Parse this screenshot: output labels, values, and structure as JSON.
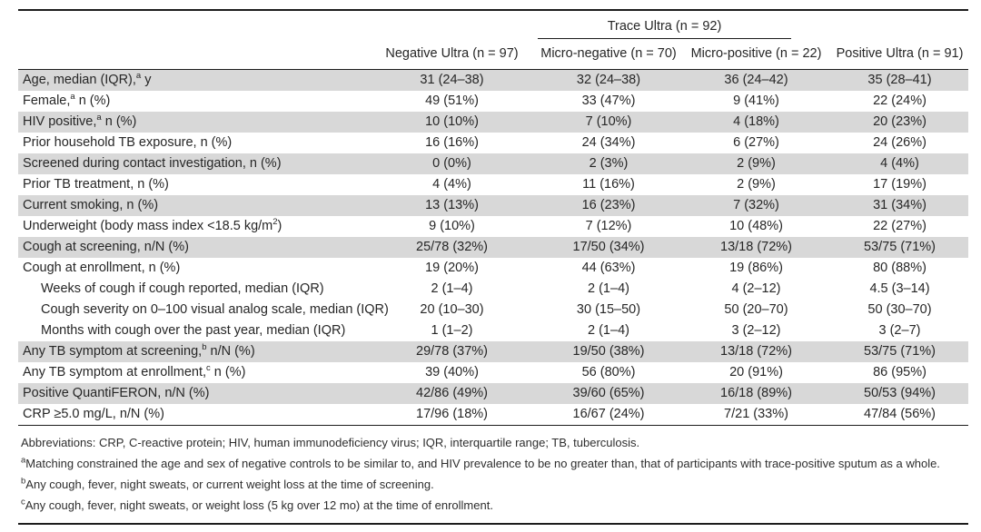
{
  "table": {
    "group_header": "Trace Ultra (n = 92)",
    "columns": [
      "Negative Ultra (n = 97)",
      "Micro-negative (n = 70)",
      "Micro-positive (n = 22)",
      "Positive Ultra (n = 91)"
    ],
    "rows": [
      {
        "label": [
          [
            "t",
            "Age, median (IQR),"
          ],
          [
            "sup",
            "a"
          ],
          [
            "t",
            " y"
          ]
        ],
        "indent": false,
        "shaded": true,
        "values": [
          "31 (24–38)",
          "32 (24–38)",
          "36 (24–42)",
          "35 (28–41)"
        ]
      },
      {
        "label": [
          [
            "t",
            "Female,"
          ],
          [
            "sup",
            "a"
          ],
          [
            "t",
            " n (%)"
          ]
        ],
        "indent": false,
        "shaded": false,
        "values": [
          "49 (51%)",
          "33 (47%)",
          "9 (41%)",
          "22 (24%)"
        ]
      },
      {
        "label": [
          [
            "t",
            "HIV positive,"
          ],
          [
            "sup",
            "a"
          ],
          [
            "t",
            " n (%)"
          ]
        ],
        "indent": false,
        "shaded": true,
        "values": [
          "10 (10%)",
          "7 (10%)",
          "4 (18%)",
          "20 (23%)"
        ]
      },
      {
        "label": [
          [
            "t",
            "Prior household TB exposure, n (%)"
          ]
        ],
        "indent": false,
        "shaded": false,
        "values": [
          "16 (16%)",
          "24 (34%)",
          "6 (27%)",
          "24 (26%)"
        ]
      },
      {
        "label": [
          [
            "t",
            "Screened during contact investigation, n (%)"
          ]
        ],
        "indent": false,
        "shaded": true,
        "values": [
          "0 (0%)",
          "2 (3%)",
          "2 (9%)",
          "4 (4%)"
        ]
      },
      {
        "label": [
          [
            "t",
            "Prior TB treatment, n (%)"
          ]
        ],
        "indent": false,
        "shaded": false,
        "values": [
          "4 (4%)",
          "11 (16%)",
          "2 (9%)",
          "17 (19%)"
        ]
      },
      {
        "label": [
          [
            "t",
            "Current smoking, n (%)"
          ]
        ],
        "indent": false,
        "shaded": true,
        "values": [
          "13 (13%)",
          "16 (23%)",
          "7 (32%)",
          "31 (34%)"
        ]
      },
      {
        "label": [
          [
            "t",
            "Underweight (body mass index <18.5 kg/m"
          ],
          [
            "sup",
            "2"
          ],
          [
            "t",
            ")"
          ]
        ],
        "indent": false,
        "shaded": false,
        "values": [
          "9 (10%)",
          "7 (12%)",
          "10 (48%)",
          "22 (27%)"
        ]
      },
      {
        "label": [
          [
            "t",
            "Cough at screening, n/N (%)"
          ]
        ],
        "indent": false,
        "shaded": true,
        "values": [
          "25/78 (32%)",
          "17/50 (34%)",
          "13/18 (72%)",
          "53/75 (71%)"
        ]
      },
      {
        "label": [
          [
            "t",
            "Cough at enrollment, n (%)"
          ]
        ],
        "indent": false,
        "shaded": false,
        "values": [
          "19 (20%)",
          "44 (63%)",
          "19 (86%)",
          "80 (88%)"
        ]
      },
      {
        "label": [
          [
            "t",
            "Weeks of cough if cough reported, median (IQR)"
          ]
        ],
        "indent": true,
        "shaded": false,
        "values": [
          "2 (1–4)",
          "2 (1–4)",
          "4 (2–12)",
          "4.5 (3–14)"
        ]
      },
      {
        "label": [
          [
            "t",
            "Cough severity on 0–100 visual analog scale, median (IQR)"
          ]
        ],
        "indent": true,
        "shaded": false,
        "values": [
          "20 (10–30)",
          "30 (15–50)",
          "50 (20–70)",
          "50 (30–70)"
        ]
      },
      {
        "label": [
          [
            "t",
            "Months with cough over the past year, median (IQR)"
          ]
        ],
        "indent": true,
        "shaded": false,
        "values": [
          "1 (1–2)",
          "2 (1–4)",
          "3 (2–12)",
          "3 (2–7)"
        ]
      },
      {
        "label": [
          [
            "t",
            "Any TB symptom at screening,"
          ],
          [
            "sup",
            "b"
          ],
          [
            "t",
            " n/N (%)"
          ]
        ],
        "indent": false,
        "shaded": true,
        "values": [
          "29/78 (37%)",
          "19/50 (38%)",
          "13/18 (72%)",
          "53/75 (71%)"
        ]
      },
      {
        "label": [
          [
            "t",
            "Any TB symptom at enrollment,"
          ],
          [
            "sup",
            "c"
          ],
          [
            "t",
            " n (%)"
          ]
        ],
        "indent": false,
        "shaded": false,
        "values": [
          "39 (40%)",
          "56 (80%)",
          "20 (91%)",
          "86 (95%)"
        ]
      },
      {
        "label": [
          [
            "t",
            "Positive QuantiFERON, n/N (%)"
          ]
        ],
        "indent": false,
        "shaded": true,
        "values": [
          "42/86 (49%)",
          "39/60 (65%)",
          "16/18 (89%)",
          "50/53 (94%)"
        ]
      },
      {
        "label": [
          [
            "t",
            "CRP ≥5.0 mg/L, n/N (%)"
          ]
        ],
        "indent": false,
        "shaded": false,
        "values": [
          "17/96 (18%)",
          "16/67 (24%)",
          "7/21 (33%)",
          "47/84 (56%)"
        ]
      }
    ]
  },
  "footnotes": [
    {
      "sup": "",
      "text": "Abbreviations: CRP, C-reactive protein; HIV, human immunodeficiency virus; IQR, interquartile range; TB, tuberculosis."
    },
    {
      "sup": "a",
      "text": "Matching constrained the age and sex of negative controls to be similar to, and HIV prevalence to be no greater than, that of participants with trace-positive sputum as a whole."
    },
    {
      "sup": "b",
      "text": "Any cough, fever, night sweats, or current weight loss at the time of screening."
    },
    {
      "sup": "c",
      "text": "Any cough, fever, night sweats, or weight loss (5 kg over 12 mo) at the time of enrollment."
    }
  ],
  "colors": {
    "shade": "#d8d8d8",
    "rule": "#1c1c1c",
    "text": "#262626"
  }
}
